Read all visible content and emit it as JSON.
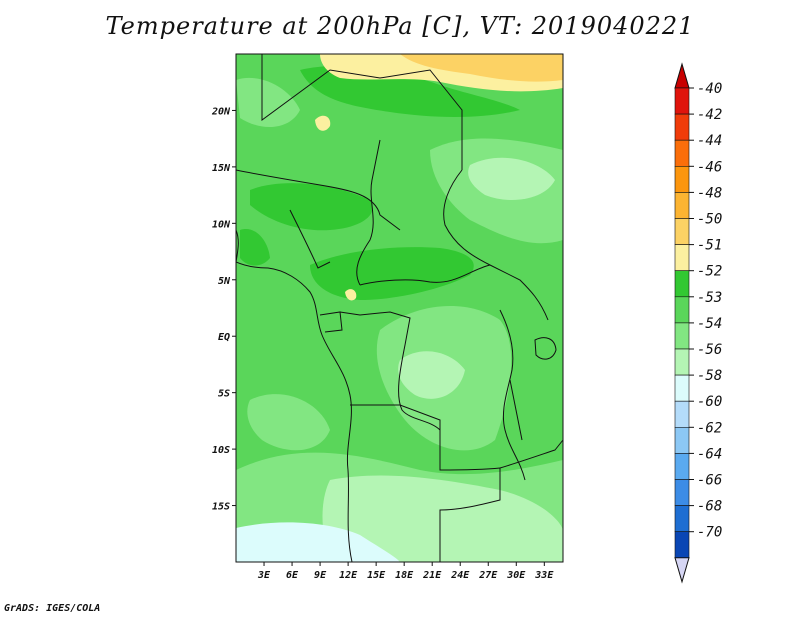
{
  "title": "Temperature at 200hPa [C], VT: 2019040221",
  "credit": "GrADS: IGES/COLA",
  "map": {
    "lon_range": [
      0,
      35
    ],
    "lat_range": [
      -20,
      25
    ],
    "lat_ticks": [
      {
        "value": 20,
        "label": "20N"
      },
      {
        "value": 15,
        "label": "15N"
      },
      {
        "value": 10,
        "label": "10N"
      },
      {
        "value": 5,
        "label": "5N"
      },
      {
        "value": 0,
        "label": "EQ"
      },
      {
        "value": -5,
        "label": "5S"
      },
      {
        "value": -10,
        "label": "10S"
      },
      {
        "value": -15,
        "label": "15S"
      }
    ],
    "lon_ticks": [
      {
        "value": 3,
        "label": "3E"
      },
      {
        "value": 6,
        "label": "6E"
      },
      {
        "value": 9,
        "label": "9E"
      },
      {
        "value": 12,
        "label": "12E"
      },
      {
        "value": 15,
        "label": "15E"
      },
      {
        "value": 18,
        "label": "18E"
      },
      {
        "value": 21,
        "label": "21E"
      },
      {
        "value": 24,
        "label": "24E"
      },
      {
        "value": 27,
        "label": "27E"
      },
      {
        "value": 30,
        "label": "30E"
      },
      {
        "value": 33,
        "label": "33E"
      }
    ]
  },
  "colorbar": {
    "levels": [
      {
        "label": "-40",
        "color": "#e0140c"
      },
      {
        "label": "-42",
        "color": "#f03c0a"
      },
      {
        "label": "-44",
        "color": "#fa6e0a"
      },
      {
        "label": "-46",
        "color": "#fc960e"
      },
      {
        "label": "-48",
        "color": "#fcb432"
      },
      {
        "label": "-50",
        "color": "#fcd264"
      },
      {
        "label": "-51",
        "color": "#fcf0a0"
      },
      {
        "label": "-52",
        "color": "#32c832"
      },
      {
        "label": "-53",
        "color": "#5ad65a"
      },
      {
        "label": "-54",
        "color": "#82e682"
      },
      {
        "label": "-56",
        "color": "#b4f5b4"
      },
      {
        "label": "-58",
        "color": "#dcfcfc"
      },
      {
        "label": "-60",
        "color": "#b4dcfa"
      },
      {
        "label": "-62",
        "color": "#8cc8f5"
      },
      {
        "label": "-64",
        "color": "#5aaaf0"
      },
      {
        "label": "-66",
        "color": "#3c8ce6"
      },
      {
        "label": "-68",
        "color": "#1e6ed2"
      },
      {
        "label": "-70",
        "color": "#0a46b4"
      }
    ],
    "top_cap_color": "#c80000",
    "bottom_cap_color": "#0a1e78",
    "extra_bottom_cap_color": "#d6d6f4"
  },
  "field_colors": {
    "warm_band": "#fcd264",
    "pale_yellow": "#fcf0a0",
    "green_dark": "#32c832",
    "green_mid": "#5ad65a",
    "green_light": "#82e682",
    "green_pale": "#b4f5b4",
    "cyan_pale": "#dcfcfc"
  }
}
